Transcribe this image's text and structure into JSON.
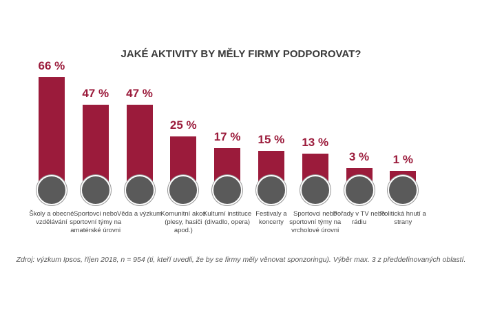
{
  "chart_data": {
    "type": "bar",
    "title": "JAKÉ AKTIVITY BY MĚLY FIRMY PODPOROVAT?",
    "categories": [
      "Školy a obecné vzdělávání",
      "Sportovci nebo sportovní týmy na amatérské úrovni",
      "Věda a výzkum",
      "Komunitní akce (plesy, hasiči apod.)",
      "Kulturní instituce (divadlo, opera)",
      "Festivaly a koncerty",
      "Sportovci nebo sportovní týmy na vrcholové úrovni",
      "Pořady v TV nebo rádiu",
      "Politická hnutí a strany"
    ],
    "values": [
      66,
      47,
      47,
      25,
      17,
      15,
      13,
      3,
      1
    ],
    "value_labels": [
      "66 %",
      "47 %",
      "47 %",
      "25 %",
      "17 %",
      "15 %",
      "13 %",
      "3 %",
      "1 %"
    ],
    "color": "#9b1b3b",
    "ylim": [
      -12,
      70
    ],
    "source": "Zdroj: výzkum Ipsos, říjen 2018, n = 954 (ti, kteří uvedli, že by se firmy měly věnovat sponzoringu). Výběr max. 3 z předdefinovaných oblastí."
  }
}
